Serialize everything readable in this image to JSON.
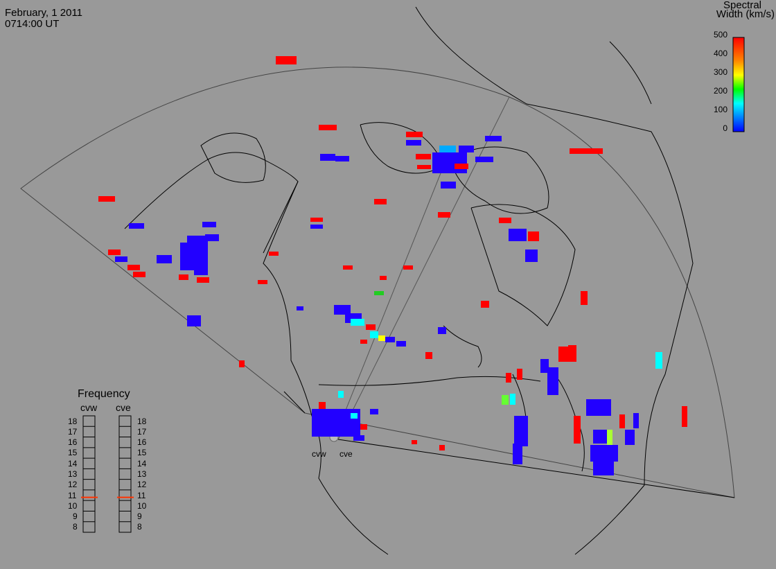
{
  "header": {
    "date": "February, 1 2011",
    "time": "0714:00 UT"
  },
  "colorbar": {
    "title_line1": "Spectral",
    "title_line2": "Width (km/s)",
    "ticks": [
      "500",
      "400",
      "300",
      "200",
      "100",
      "0"
    ],
    "range": [
      0,
      500
    ],
    "colors": [
      "#0000ff",
      "#00aaff",
      "#00ffff",
      "#00ff00",
      "#ffff00",
      "#ff8800",
      "#ff0000"
    ]
  },
  "frequency": {
    "title": "Frequency",
    "radars": [
      {
        "name": "cvw",
        "frequency_mhz": 10.8
      },
      {
        "name": "cve",
        "frequency_mhz": 10.8
      }
    ],
    "ticks": [
      "18",
      "17",
      "16",
      "15",
      "14",
      "13",
      "12",
      "11",
      "10",
      "9",
      "8"
    ],
    "indicator_color": "#ff3300"
  },
  "radar_labels": {
    "cvw": "cvw",
    "cve": "cve"
  },
  "colors": {
    "background": "#999999",
    "low_width": "#2200ff",
    "high_width": "#ff0000",
    "mid_width": "#00ccff"
  }
}
